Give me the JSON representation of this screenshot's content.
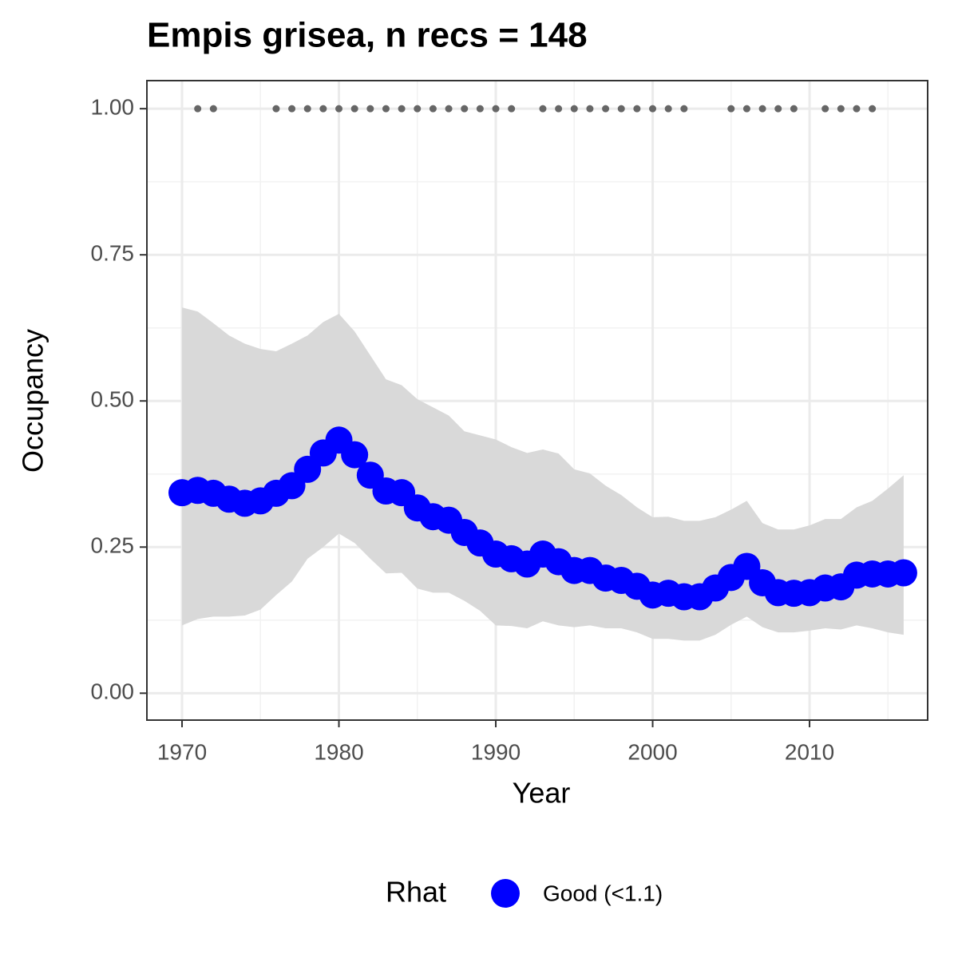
{
  "chart_data": {
    "type": "line",
    "title": "Empis grisea, n recs = 148",
    "x_label": "Year",
    "y_label": "Occupancy",
    "legend_title": "Rhat",
    "legend": "bottom",
    "grid": true,
    "x": [
      1970,
      1971,
      1972,
      1973,
      1974,
      1975,
      1976,
      1977,
      1978,
      1979,
      1980,
      1981,
      1982,
      1983,
      1984,
      1985,
      1986,
      1987,
      1988,
      1989,
      1990,
      1991,
      1992,
      1993,
      1994,
      1995,
      1996,
      1997,
      1998,
      1999,
      2000,
      2001,
      2002,
      2003,
      2004,
      2005,
      2006,
      2007,
      2008,
      2009,
      2010,
      2011,
      2012,
      2013,
      2014,
      2015,
      2016
    ],
    "series": [
      {
        "name": "Good (<1.1)",
        "color": "#0000ff",
        "values": [
          0.343,
          0.347,
          0.342,
          0.332,
          0.325,
          0.329,
          0.342,
          0.355,
          0.383,
          0.411,
          0.433,
          0.408,
          0.373,
          0.346,
          0.343,
          0.317,
          0.302,
          0.296,
          0.275,
          0.257,
          0.238,
          0.23,
          0.221,
          0.238,
          0.225,
          0.21,
          0.21,
          0.197,
          0.193,
          0.183,
          0.168,
          0.171,
          0.165,
          0.165,
          0.18,
          0.198,
          0.217,
          0.189,
          0.172,
          0.171,
          0.172,
          0.18,
          0.182,
          0.202,
          0.204,
          0.204,
          0.206
        ]
      }
    ],
    "band": {
      "color": "#d9d9d9",
      "upper": [
        0.66,
        0.653,
        0.633,
        0.612,
        0.598,
        0.589,
        0.585,
        0.598,
        0.612,
        0.635,
        0.649,
        0.619,
        0.578,
        0.537,
        0.527,
        0.503,
        0.489,
        0.475,
        0.448,
        0.441,
        0.434,
        0.421,
        0.411,
        0.417,
        0.41,
        0.383,
        0.376,
        0.355,
        0.339,
        0.318,
        0.301,
        0.302,
        0.295,
        0.295,
        0.301,
        0.314,
        0.329,
        0.291,
        0.28,
        0.28,
        0.287,
        0.298,
        0.298,
        0.318,
        0.329,
        0.35,
        0.373
      ],
      "lower": [
        0.116,
        0.127,
        0.131,
        0.131,
        0.133,
        0.143,
        0.168,
        0.191,
        0.23,
        0.25,
        0.273,
        0.257,
        0.23,
        0.205,
        0.206,
        0.179,
        0.172,
        0.172,
        0.158,
        0.141,
        0.116,
        0.115,
        0.111,
        0.123,
        0.116,
        0.113,
        0.116,
        0.111,
        0.111,
        0.104,
        0.093,
        0.093,
        0.09,
        0.09,
        0.1,
        0.117,
        0.131,
        0.113,
        0.104,
        0.104,
        0.107,
        0.111,
        0.109,
        0.116,
        0.111,
        0.104,
        0.1
      ]
    },
    "records": {
      "color": "#666666",
      "x": [
        1971,
        1972,
        1976,
        1977,
        1978,
        1979,
        1980,
        1981,
        1982,
        1983,
        1984,
        1985,
        1986,
        1987,
        1988,
        1989,
        1990,
        1991,
        1993,
        1994,
        1995,
        1996,
        1997,
        1998,
        1999,
        2000,
        2001,
        2002,
        2005,
        2006,
        2007,
        2008,
        2009,
        2011,
        2012,
        2013,
        2014
      ],
      "values": [
        1,
        1,
        1,
        1,
        1,
        1,
        1,
        1,
        1,
        1,
        1,
        1,
        1,
        1,
        1,
        1,
        1,
        1,
        1,
        1,
        1,
        1,
        1,
        1,
        1,
        1,
        1,
        1,
        1,
        1,
        1,
        1,
        1,
        1,
        1,
        1,
        1
      ]
    },
    "xlim": [
      1967.76,
      2017.53
    ],
    "ylim": [
      -0.046,
      1.048
    ],
    "xticks": [
      1970,
      1980,
      1990,
      2000,
      2010
    ],
    "yticks": [
      {
        "value": 0,
        "label": "0.00"
      },
      {
        "value": 0.25,
        "label": "0.25"
      },
      {
        "value": 0.5,
        "label": "0.50"
      },
      {
        "value": 0.75,
        "label": "0.75"
      },
      {
        "value": 1,
        "label": "1.00"
      }
    ]
  }
}
